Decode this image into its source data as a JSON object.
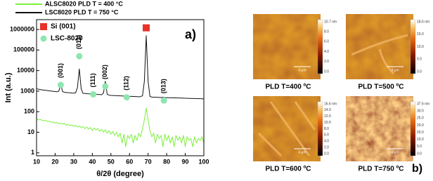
{
  "chart_data": {
    "type": "line",
    "x_label": "θ/2θ (degree)",
    "y_label": "Int (a.u.)",
    "panel_label": "a)",
    "log_y": true,
    "xlim": [
      10,
      100
    ],
    "xticks": [
      10,
      20,
      30,
      40,
      50,
      60,
      70,
      80,
      90,
      100
    ],
    "ylim": [
      0.72,
      3000000
    ],
    "yticks": [
      1,
      10,
      100,
      1000,
      10000,
      100000,
      1000000
    ],
    "x": [
      10,
      11,
      12,
      13,
      14,
      15,
      16,
      17,
      18,
      19,
      20,
      21,
      22,
      23,
      24,
      25,
      26,
      27,
      28,
      29,
      30,
      31,
      32,
      33,
      34,
      35,
      36,
      37,
      38,
      39,
      40,
      41,
      42,
      43,
      44,
      45,
      46,
      47,
      48,
      49,
      50,
      51,
      52,
      53,
      54,
      55,
      56,
      57,
      58,
      59,
      60,
      61,
      62,
      63,
      64,
      65,
      66,
      67,
      68,
      69,
      70,
      71,
      72,
      73,
      74,
      75,
      76,
      77,
      78,
      79,
      80,
      81,
      82,
      83,
      84,
      85,
      86,
      87,
      88,
      89,
      90,
      91,
      92,
      93,
      94,
      95,
      96,
      97,
      98,
      99,
      100
    ],
    "series": [
      {
        "name": "ALSC8020 PLD T = 400 °C",
        "color": "#7cf03c",
        "values": [
          45,
          40,
          42,
          38,
          36,
          38,
          33,
          35,
          30,
          32,
          28,
          30,
          26,
          28,
          25,
          27,
          22,
          24,
          21,
          23,
          19,
          22,
          18,
          20,
          17,
          19,
          15,
          18,
          14,
          17,
          12,
          16,
          13,
          15,
          11,
          14,
          10,
          13,
          9,
          12,
          8,
          11,
          7,
          10,
          6,
          9,
          3,
          8,
          2,
          7,
          5,
          8,
          3,
          7,
          4,
          9,
          6,
          15,
          40,
          150,
          40,
          12,
          6,
          9,
          3,
          8,
          5,
          7,
          2,
          8,
          4,
          7,
          3,
          6,
          2,
          7,
          4,
          6,
          3,
          7,
          2,
          6,
          4,
          5,
          2,
          6,
          3,
          5,
          4,
          6,
          3
        ]
      },
      {
        "name": "LSC8020  PLD T = 750 °C",
        "color": "#111111",
        "values": [
          1300,
          1250,
          1200,
          1150,
          1120,
          1100,
          1060,
          1030,
          1000,
          980,
          950,
          930,
          1000,
          2200,
          950,
          880,
          860,
          840,
          830,
          810,
          800,
          820,
          1500,
          12000,
          1300,
          780,
          770,
          760,
          740,
          730,
          720,
          720,
          700,
          690,
          680,
          670,
          800,
          3000,
          700,
          640,
          620,
          615,
          610,
          600,
          595,
          590,
          585,
          580,
          600,
          570,
          560,
          555,
          550,
          545,
          540,
          535,
          540,
          600,
          3000,
          500000,
          3000,
          560,
          515,
          510,
          505,
          500,
          495,
          490,
          500,
          485,
          480,
          478,
          475,
          472,
          470,
          468,
          465,
          462,
          460,
          455,
          450,
          448,
          445,
          442,
          440,
          438,
          435,
          432,
          430,
          425,
          420
        ]
      }
    ],
    "marker_legend": [
      {
        "name": "Si (001)",
        "color": "#e8312a",
        "shape": "square"
      },
      {
        "name": "LSC-8020",
        "color": "#8ee6b0",
        "shape": "circle"
      }
    ],
    "peaks": [
      {
        "label": "(001)",
        "x": 23,
        "y": 2000,
        "marker": 1
      },
      {
        "label": "(011)",
        "x": 33,
        "y": 50000,
        "marker": 1
      },
      {
        "label": "(111)",
        "x": 40.5,
        "y": 700,
        "marker": 1
      },
      {
        "label": "(002)",
        "x": 47,
        "y": 1700,
        "marker": 1
      },
      {
        "label": "(112)",
        "x": 58.5,
        "y": 500,
        "marker": 1
      },
      {
        "label": "(013)",
        "x": 78.5,
        "y": 350,
        "marker": 1
      },
      {
        "x": 69,
        "y": 1200000,
        "marker": 0
      }
    ]
  },
  "panel_b": {
    "label": "b)",
    "images": [
      {
        "caption": "PLD T=400 ºC",
        "scale_bar": "4 µm",
        "colorbar": [
          "10.7 nm",
          "8.0",
          "6.0",
          "4.0",
          "2.0",
          "0.0"
        ]
      },
      {
        "caption": "PLD T=500 ºC",
        "scale_bar": "4 µm",
        "colorbar": [
          "18.6 nm",
          "15.0",
          "10.0",
          "5.0",
          "0.0"
        ]
      },
      {
        "caption": "PLD T=600 ºC",
        "scale_bar": "4 µm",
        "colorbar": [
          "16.6 nm",
          "14.0",
          "12.0",
          "10.0",
          "8.0",
          "6.0",
          "4.0",
          "2.0",
          "0.0"
        ]
      },
      {
        "caption": "PLD T=750 ºC",
        "scale_bar": "4 µm",
        "colorbar": [
          "37.6 nm",
          "30.0",
          "25.0",
          "20.0",
          "15.0",
          "10.0",
          "5.0",
          "0.0"
        ]
      }
    ]
  }
}
